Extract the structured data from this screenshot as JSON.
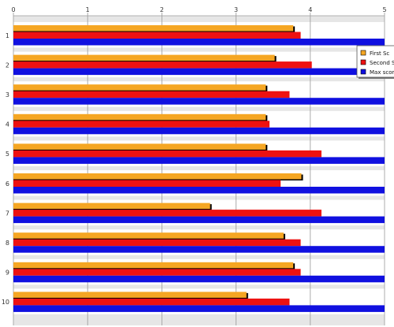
{
  "chart_data": {
    "type": "bar",
    "orientation": "horizontal",
    "categories": [
      "1",
      "2",
      "3",
      "4",
      "5",
      "6",
      "7",
      "8",
      "9",
      "10"
    ],
    "xlim": [
      0,
      5
    ],
    "x_ticks": [
      "0",
      "1",
      "2",
      "3",
      "4",
      "5"
    ],
    "grid": true,
    "legend_position": "top-right",
    "series": [
      {
        "name": "First Sc",
        "color": "#F5A623",
        "values": [
          3.77,
          3.52,
          3.4,
          3.4,
          3.4,
          3.88,
          2.65,
          3.64,
          3.77,
          3.14
        ]
      },
      {
        "name": "Second S",
        "color": "#EE1111",
        "values": [
          3.87,
          4.02,
          3.72,
          3.45,
          4.15,
          3.6,
          4.15,
          3.87,
          3.87,
          3.72
        ]
      },
      {
        "name": "Max scor",
        "color": "#1010E0",
        "values": [
          5,
          5,
          5,
          5,
          5,
          5,
          5,
          5,
          5,
          5
        ]
      }
    ],
    "title": "",
    "xlabel": "",
    "ylabel": ""
  },
  "colors": {
    "plot_background": "#E6E6E6",
    "band_fill": "#FFFFFF",
    "grid": "#9A9A9A",
    "bar_shadow": "#000000"
  }
}
